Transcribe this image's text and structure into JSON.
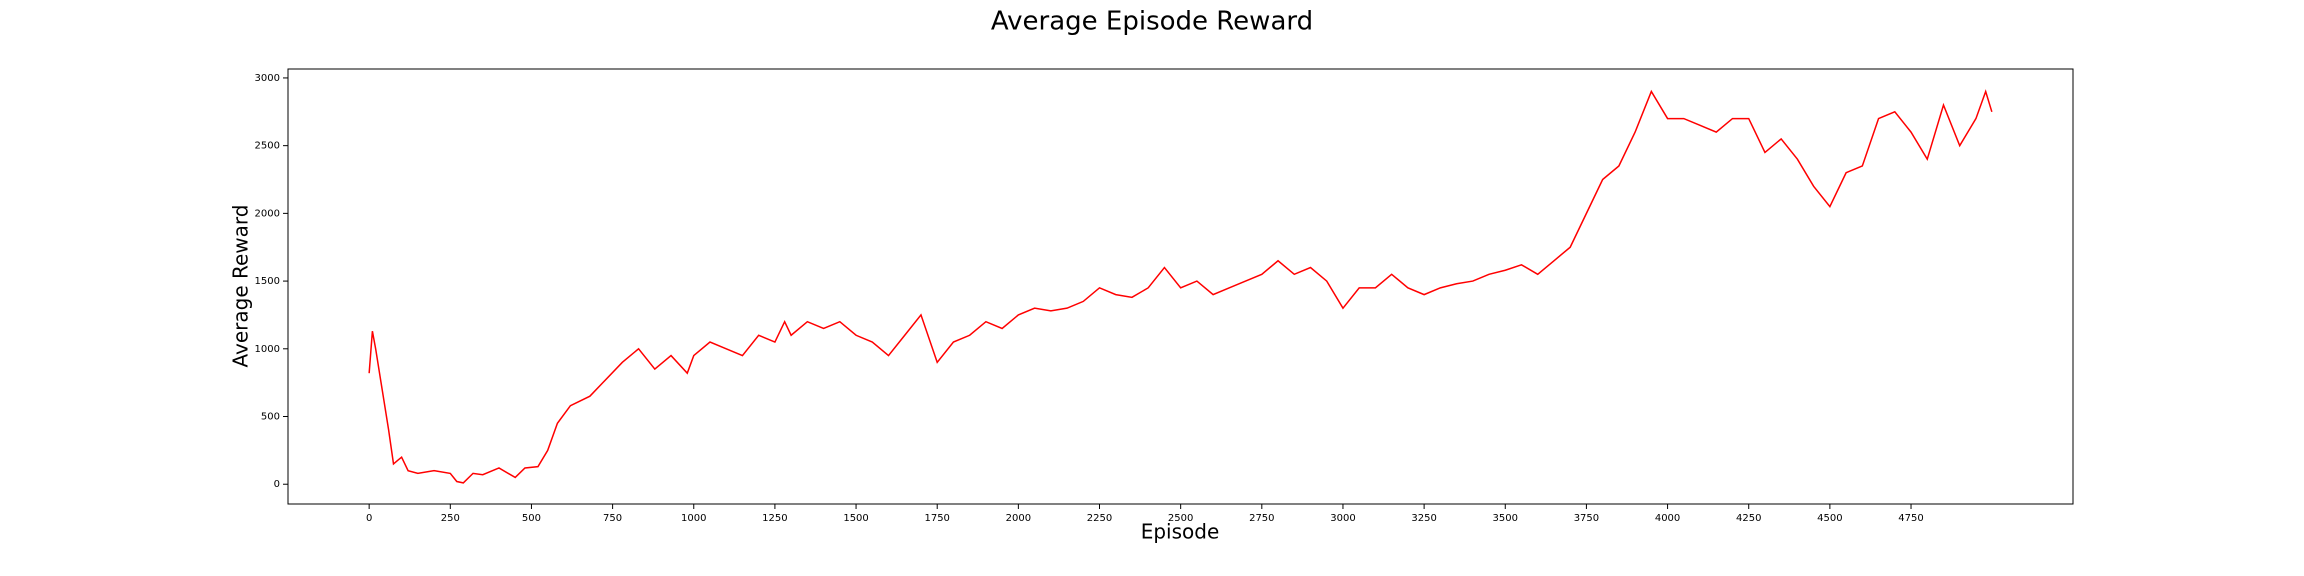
{
  "chart_data": {
    "type": "line",
    "title": "Average Episode Reward",
    "x_label": "Episode",
    "y_label": "Average Reward",
    "x": [
      0,
      10,
      20,
      40,
      60,
      75,
      90,
      100,
      120,
      150,
      200,
      250,
      270,
      290,
      320,
      350,
      400,
      450,
      480,
      520,
      550,
      580,
      620,
      680,
      720,
      780,
      830,
      880,
      930,
      980,
      1000,
      1050,
      1100,
      1150,
      1200,
      1250,
      1280,
      1300,
      1350,
      1400,
      1450,
      1500,
      1550,
      1600,
      1650,
      1700,
      1750,
      1800,
      1850,
      1900,
      1950,
      2000,
      2050,
      2100,
      2150,
      2200,
      2250,
      2300,
      2350,
      2400,
      2450,
      2500,
      2550,
      2600,
      2650,
      2700,
      2750,
      2800,
      2850,
      2900,
      2950,
      3000,
      3050,
      3100,
      3150,
      3200,
      3250,
      3300,
      3350,
      3400,
      3450,
      3500,
      3550,
      3600,
      3650,
      3700,
      3750,
      3800,
      3850,
      3900,
      3950,
      4000,
      4050,
      4100,
      4150,
      4200,
      4250,
      4300,
      4350,
      4400,
      4450,
      4500,
      4550,
      4600,
      4650,
      4700,
      4750,
      4800,
      4850,
      4900,
      4950,
      4980,
      4999
    ],
    "series": [
      {
        "name": "Average Reward",
        "color": "#ff0000",
        "values": [
          820,
          1130,
          1000,
          700,
          400,
          150,
          180,
          200,
          100,
          80,
          100,
          80,
          20,
          10,
          80,
          70,
          120,
          50,
          120,
          130,
          250,
          450,
          580,
          650,
          750,
          900,
          1000,
          850,
          950,
          820,
          950,
          1050,
          1000,
          950,
          1100,
          1050,
          1200,
          1100,
          1200,
          1150,
          1200,
          1100,
          1050,
          950,
          1100,
          1250,
          900,
          1050,
          1100,
          1200,
          1150,
          1250,
          1300,
          1280,
          1300,
          1350,
          1450,
          1400,
          1380,
          1450,
          1600,
          1450,
          1500,
          1400,
          1450,
          1500,
          1550,
          1650,
          1550,
          1600,
          1500,
          1300,
          1450,
          1450,
          1550,
          1450,
          1400,
          1450,
          1480,
          1500,
          1550,
          1580,
          1620,
          1550,
          1650,
          1750,
          2000,
          2250,
          2350,
          2600,
          2900,
          2700,
          2700,
          2650,
          2600,
          2700,
          2700,
          2450,
          2550,
          2400,
          2200,
          2050,
          2300,
          2350,
          2700,
          2750,
          2600,
          2400,
          2800,
          2500,
          2700,
          2900,
          2750
        ]
      }
    ],
    "xlim": [
      -250,
      5249
    ],
    "ylim": [
      -146,
      3066
    ],
    "xticks": [
      0,
      250,
      500,
      750,
      1000,
      1250,
      1500,
      1750,
      2000,
      2250,
      2500,
      2750,
      3000,
      3250,
      3500,
      3750,
      4000,
      4250,
      4500,
      4750
    ],
    "yticks": [
      0,
      500,
      1000,
      1500,
      2000,
      2500,
      3000
    ],
    "grid": false
  }
}
